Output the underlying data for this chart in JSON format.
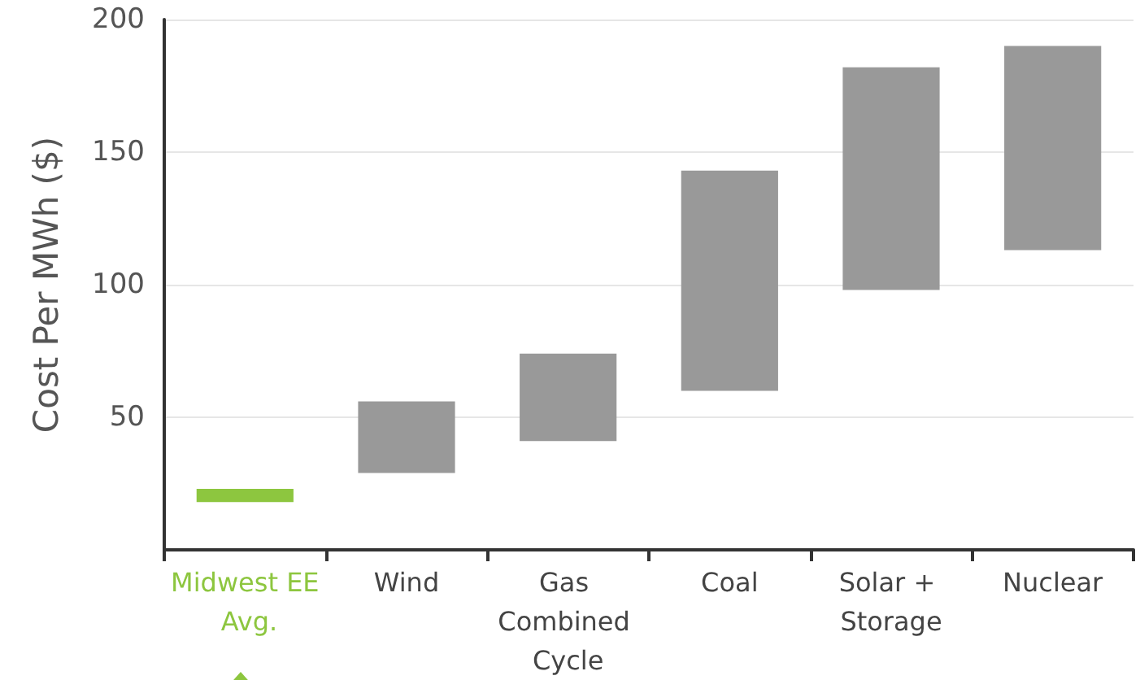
{
  "chart_data": {
    "type": "bar",
    "ylabel": "Cost Per MWh ($)",
    "categories": [
      "Midwest EE Avg.",
      "Wind",
      "Gas Combined Cycle",
      "Coal",
      "Solar + Storage",
      "Nuclear"
    ],
    "base": [
      18,
      29,
      41,
      60,
      98,
      113
    ],
    "values": [
      5,
      27,
      33,
      83,
      84,
      77
    ],
    "colors": [
      "#8dc63f",
      "#999999",
      "#999999",
      "#999999",
      "#999999",
      "#999999"
    ],
    "ylim": [
      0,
      200
    ],
    "yticks": [
      50,
      100,
      150,
      200
    ],
    "grid": "y"
  }
}
